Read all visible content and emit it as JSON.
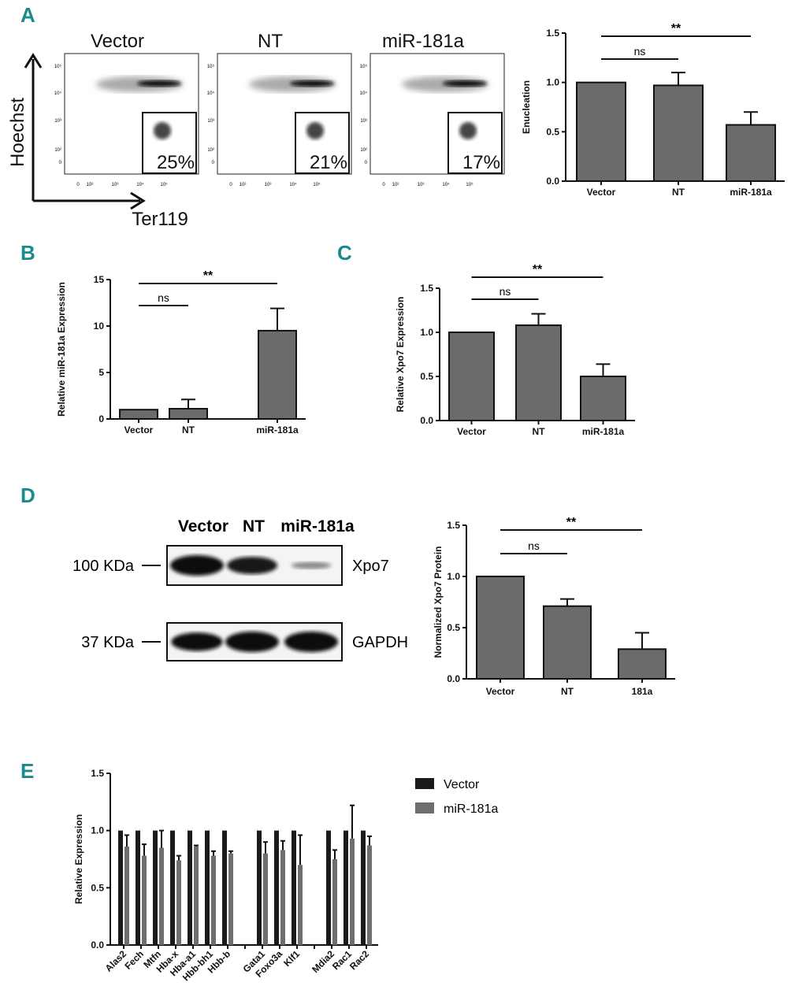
{
  "panel_labels": [
    "A",
    "B",
    "C",
    "D",
    "E"
  ],
  "flow": {
    "x_axis_label": "Ter119",
    "y_axis_label": "Hoechst",
    "x_ticks": [
      "0",
      "10²",
      "10³",
      "10⁴",
      "10⁵"
    ],
    "y_ticks": [
      "10⁵",
      "10⁴",
      "10³",
      "10²",
      "0"
    ],
    "plots": [
      {
        "title": "Vector",
        "gate_percent": "25%"
      },
      {
        "title": "NT",
        "gate_percent": "21%"
      },
      {
        "title": "miR-181a",
        "gate_percent": "17%"
      }
    ]
  },
  "western": {
    "lanes": [
      "Vector",
      "NT",
      "miR-181a"
    ],
    "blots": [
      {
        "marker": "100 KDa",
        "protein": "Xpo7",
        "intensity": [
          1.0,
          0.85,
          0.35
        ]
      },
      {
        "marker": "37 KDa",
        "protein": "GAPDH",
        "intensity": [
          0.9,
          1.0,
          1.0
        ]
      }
    ]
  },
  "chart_data": [
    {
      "id": "A",
      "type": "bar",
      "title": "",
      "xlabel": "",
      "ylabel": "Enucleation",
      "categories": [
        "Vector",
        "NT",
        "miR-181a"
      ],
      "values": [
        1.0,
        0.97,
        0.57
      ],
      "errors": [
        0,
        0.13,
        0.13
      ],
      "ylim": [
        0,
        1.5
      ],
      "yticks": [
        "0.0",
        "0.5",
        "1.0",
        "1.5"
      ],
      "annotations": [
        {
          "text": "ns",
          "from": 0,
          "to": 1
        },
        {
          "text": "**",
          "from": 0,
          "to": 2
        }
      ]
    },
    {
      "id": "B",
      "type": "bar",
      "title": "",
      "xlabel": "",
      "ylabel": "Relative miR-181a Expression",
      "categories": [
        "Vector",
        "NT",
        "miR-181a"
      ],
      "values": [
        1.0,
        1.1,
        9.5
      ],
      "errors": [
        0,
        1.0,
        2.4
      ],
      "ylim": [
        0,
        15
      ],
      "yticks": [
        "0",
        "5",
        "10",
        "15"
      ],
      "annotations": [
        {
          "text": "ns",
          "from": 0,
          "to": 1
        },
        {
          "text": "**",
          "from": 0,
          "to": 2
        }
      ]
    },
    {
      "id": "C",
      "type": "bar",
      "title": "",
      "xlabel": "",
      "ylabel": "Relative Xpo7 Expression",
      "categories": [
        "Vector",
        "NT",
        "miR-181a"
      ],
      "values": [
        1.0,
        1.08,
        0.5
      ],
      "errors": [
        0,
        0.13,
        0.14
      ],
      "ylim": [
        0,
        1.5
      ],
      "yticks": [
        "0.0",
        "0.5",
        "1.0",
        "1.5"
      ],
      "annotations": [
        {
          "text": "ns",
          "from": 0,
          "to": 1
        },
        {
          "text": "**",
          "from": 0,
          "to": 2
        }
      ]
    },
    {
      "id": "D",
      "type": "bar",
      "title": "",
      "xlabel": "",
      "ylabel": "Normalized Xpo7 Protein",
      "categories": [
        "Vector",
        "NT",
        "181a"
      ],
      "values": [
        1.0,
        0.71,
        0.29
      ],
      "errors": [
        0,
        0.07,
        0.16
      ],
      "ylim": [
        0,
        1.5
      ],
      "yticks": [
        "0.0",
        "0.5",
        "1.0",
        "1.5"
      ],
      "annotations": [
        {
          "text": "ns",
          "from": 0,
          "to": 1
        },
        {
          "text": "**",
          "from": 0,
          "to": 2
        }
      ]
    },
    {
      "id": "E",
      "type": "bar",
      "title": "",
      "xlabel": "",
      "ylabel": "Relative Expression",
      "ylim": [
        0,
        1.5
      ],
      "yticks": [
        "0.0",
        "0.5",
        "1.0",
        "1.5"
      ],
      "legend": "top-right",
      "categories": [
        "Alas2",
        "Fech",
        "Mtfn",
        "Hba-x",
        "Hba-a1",
        "Hbb-bh1",
        "Hbb-b",
        "",
        "Gata1",
        "Foxo3a",
        "Klf1",
        "",
        "Mdia2",
        "Rac1",
        "Rac2"
      ],
      "series": [
        {
          "name": "Vector",
          "color": "#1a1a1a",
          "values": [
            1,
            1,
            1,
            1,
            1,
            1,
            1,
            null,
            1,
            1,
            1,
            null,
            1,
            1,
            1
          ],
          "errors": [
            0,
            0,
            0,
            0,
            0,
            0,
            0,
            null,
            0,
            0,
            0,
            null,
            0,
            0,
            0
          ]
        },
        {
          "name": "miR-181a",
          "color": "#6e6e6e",
          "values": [
            0.86,
            0.78,
            0.85,
            0.74,
            0.86,
            0.78,
            0.8,
            null,
            0.8,
            0.83,
            0.7,
            null,
            0.75,
            0.93,
            0.87
          ],
          "errors": [
            0.1,
            0.1,
            0.15,
            0.04,
            0.01,
            0.04,
            0.02,
            null,
            0.1,
            0.08,
            0.26,
            null,
            0.08,
            0.29,
            0.08
          ]
        }
      ]
    }
  ]
}
